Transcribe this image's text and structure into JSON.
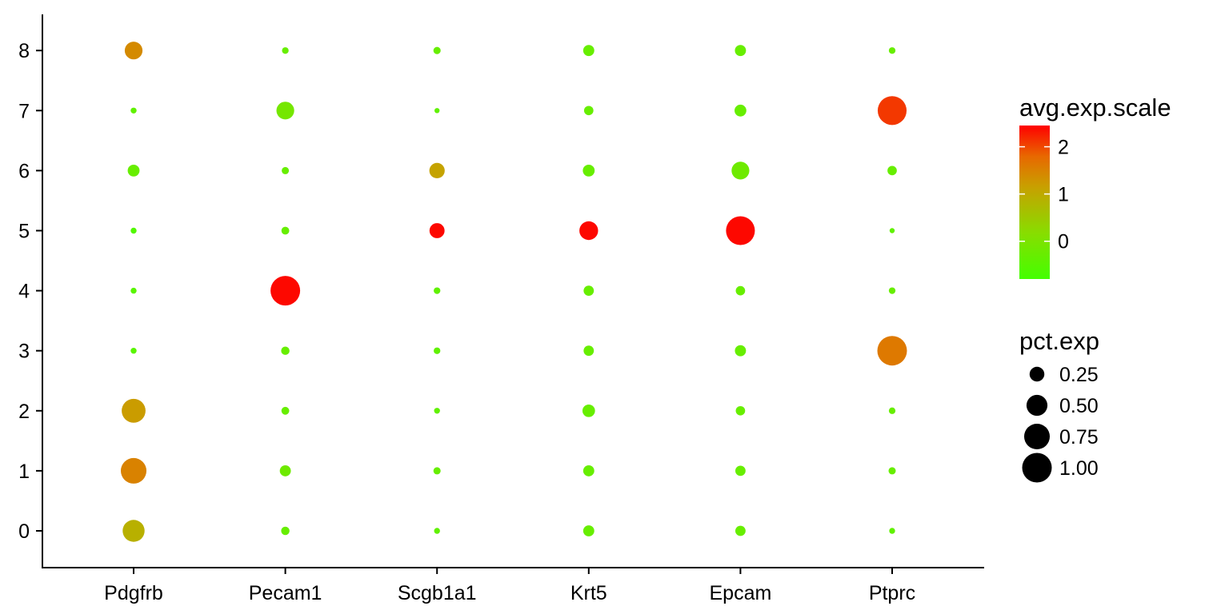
{
  "chart_data": {
    "type": "scatter",
    "subtype": "dot-plot",
    "title": "",
    "xlabel": "",
    "ylabel": "",
    "categories": [
      "Pdgfrb",
      "Pecam1",
      "Scgb1a1",
      "Krt5",
      "Epcam",
      "Ptprc"
    ],
    "clusters": [
      "0",
      "1",
      "2",
      "3",
      "4",
      "5",
      "6",
      "7",
      "8"
    ],
    "grid": false,
    "color_scale": {
      "title": "avg.exp.scale",
      "min": -0.8,
      "max": 2.45,
      "ticks": [
        0,
        1,
        2
      ],
      "low_color": "#44ff00",
      "mid_color": "#c8a000",
      "high_color": "#ff0000"
    },
    "size_scale": {
      "title": "pct.exp",
      "ticks": [
        0.25,
        0.5,
        0.75,
        1.0
      ],
      "tick_labels": [
        "0.25",
        "0.50",
        "0.75",
        "1.00"
      ]
    },
    "legend_position": "right",
    "points": [
      {
        "gene": "Pdgfrb",
        "cluster": "0",
        "pct_exp": 0.55,
        "avg_exp_scale": 0.9
      },
      {
        "gene": "Pdgfrb",
        "cluster": "1",
        "pct_exp": 0.75,
        "avg_exp_scale": 1.5
      },
      {
        "gene": "Pdgfrb",
        "cluster": "2",
        "pct_exp": 0.65,
        "avg_exp_scale": 1.2
      },
      {
        "gene": "Pdgfrb",
        "cluster": "3",
        "pct_exp": 0.04,
        "avg_exp_scale": -0.5
      },
      {
        "gene": "Pdgfrb",
        "cluster": "4",
        "pct_exp": 0.04,
        "avg_exp_scale": -0.5
      },
      {
        "gene": "Pdgfrb",
        "cluster": "5",
        "pct_exp": 0.04,
        "avg_exp_scale": -0.6
      },
      {
        "gene": "Pdgfrb",
        "cluster": "6",
        "pct_exp": 0.16,
        "avg_exp_scale": -0.3
      },
      {
        "gene": "Pdgfrb",
        "cluster": "7",
        "pct_exp": 0.04,
        "avg_exp_scale": -0.4
      },
      {
        "gene": "Pdgfrb",
        "cluster": "8",
        "pct_exp": 0.36,
        "avg_exp_scale": 1.4
      },
      {
        "gene": "Pecam1",
        "cluster": "0",
        "pct_exp": 0.08,
        "avg_exp_scale": -0.3
      },
      {
        "gene": "Pecam1",
        "cluster": "1",
        "pct_exp": 0.14,
        "avg_exp_scale": -0.2
      },
      {
        "gene": "Pecam1",
        "cluster": "2",
        "pct_exp": 0.07,
        "avg_exp_scale": -0.3
      },
      {
        "gene": "Pecam1",
        "cluster": "3",
        "pct_exp": 0.08,
        "avg_exp_scale": -0.3
      },
      {
        "gene": "Pecam1",
        "cluster": "4",
        "pct_exp": 1.0,
        "avg_exp_scale": 2.4
      },
      {
        "gene": "Pecam1",
        "cluster": "5",
        "pct_exp": 0.07,
        "avg_exp_scale": -0.3
      },
      {
        "gene": "Pecam1",
        "cluster": "6",
        "pct_exp": 0.06,
        "avg_exp_scale": -0.3
      },
      {
        "gene": "Pecam1",
        "cluster": "7",
        "pct_exp": 0.36,
        "avg_exp_scale": -0.1
      },
      {
        "gene": "Pecam1",
        "cluster": "8",
        "pct_exp": 0.05,
        "avg_exp_scale": -0.3
      },
      {
        "gene": "Scgb1a1",
        "cluster": "0",
        "pct_exp": 0.04,
        "avg_exp_scale": -0.4
      },
      {
        "gene": "Scgb1a1",
        "cluster": "1",
        "pct_exp": 0.06,
        "avg_exp_scale": -0.3
      },
      {
        "gene": "Scgb1a1",
        "cluster": "2",
        "pct_exp": 0.04,
        "avg_exp_scale": -0.4
      },
      {
        "gene": "Scgb1a1",
        "cluster": "3",
        "pct_exp": 0.05,
        "avg_exp_scale": -0.4
      },
      {
        "gene": "Scgb1a1",
        "cluster": "4",
        "pct_exp": 0.05,
        "avg_exp_scale": -0.4
      },
      {
        "gene": "Scgb1a1",
        "cluster": "5",
        "pct_exp": 0.26,
        "avg_exp_scale": 2.4
      },
      {
        "gene": "Scgb1a1",
        "cluster": "6",
        "pct_exp": 0.27,
        "avg_exp_scale": 1.1
      },
      {
        "gene": "Scgb1a1",
        "cluster": "7",
        "pct_exp": 0.03,
        "avg_exp_scale": -0.4
      },
      {
        "gene": "Scgb1a1",
        "cluster": "8",
        "pct_exp": 0.06,
        "avg_exp_scale": -0.3
      },
      {
        "gene": "Krt5",
        "cluster": "0",
        "pct_exp": 0.14,
        "avg_exp_scale": -0.3
      },
      {
        "gene": "Krt5",
        "cluster": "1",
        "pct_exp": 0.14,
        "avg_exp_scale": -0.3
      },
      {
        "gene": "Krt5",
        "cluster": "2",
        "pct_exp": 0.18,
        "avg_exp_scale": -0.3
      },
      {
        "gene": "Krt5",
        "cluster": "3",
        "pct_exp": 0.12,
        "avg_exp_scale": -0.3
      },
      {
        "gene": "Krt5",
        "cluster": "4",
        "pct_exp": 0.12,
        "avg_exp_scale": -0.3
      },
      {
        "gene": "Krt5",
        "cluster": "5",
        "pct_exp": 0.4,
        "avg_exp_scale": 2.4
      },
      {
        "gene": "Krt5",
        "cluster": "6",
        "pct_exp": 0.16,
        "avg_exp_scale": -0.3
      },
      {
        "gene": "Krt5",
        "cluster": "7",
        "pct_exp": 0.1,
        "avg_exp_scale": -0.3
      },
      {
        "gene": "Krt5",
        "cluster": "8",
        "pct_exp": 0.14,
        "avg_exp_scale": -0.3
      },
      {
        "gene": "Epcam",
        "cluster": "0",
        "pct_exp": 0.12,
        "avg_exp_scale": -0.3
      },
      {
        "gene": "Epcam",
        "cluster": "1",
        "pct_exp": 0.12,
        "avg_exp_scale": -0.3
      },
      {
        "gene": "Epcam",
        "cluster": "2",
        "pct_exp": 0.1,
        "avg_exp_scale": -0.3
      },
      {
        "gene": "Epcam",
        "cluster": "3",
        "pct_exp": 0.14,
        "avg_exp_scale": -0.3
      },
      {
        "gene": "Epcam",
        "cluster": "4",
        "pct_exp": 0.1,
        "avg_exp_scale": -0.3
      },
      {
        "gene": "Epcam",
        "cluster": "5",
        "pct_exp": 0.95,
        "avg_exp_scale": 2.4
      },
      {
        "gene": "Epcam",
        "cluster": "6",
        "pct_exp": 0.36,
        "avg_exp_scale": -0.2
      },
      {
        "gene": "Epcam",
        "cluster": "7",
        "pct_exp": 0.16,
        "avg_exp_scale": -0.3
      },
      {
        "gene": "Epcam",
        "cluster": "8",
        "pct_exp": 0.14,
        "avg_exp_scale": -0.3
      },
      {
        "gene": "Ptprc",
        "cluster": "0",
        "pct_exp": 0.04,
        "avg_exp_scale": -0.4
      },
      {
        "gene": "Ptprc",
        "cluster": "1",
        "pct_exp": 0.06,
        "avg_exp_scale": -0.3
      },
      {
        "gene": "Ptprc",
        "cluster": "2",
        "pct_exp": 0.05,
        "avg_exp_scale": -0.3
      },
      {
        "gene": "Ptprc",
        "cluster": "3",
        "pct_exp": 1.0,
        "avg_exp_scale": 1.6
      },
      {
        "gene": "Ptprc",
        "cluster": "4",
        "pct_exp": 0.05,
        "avg_exp_scale": -0.3
      },
      {
        "gene": "Ptprc",
        "cluster": "5",
        "pct_exp": 0.03,
        "avg_exp_scale": -0.4
      },
      {
        "gene": "Ptprc",
        "cluster": "6",
        "pct_exp": 0.1,
        "avg_exp_scale": -0.3
      },
      {
        "gene": "Ptprc",
        "cluster": "7",
        "pct_exp": 0.95,
        "avg_exp_scale": 2.1
      },
      {
        "gene": "Ptprc",
        "cluster": "8",
        "pct_exp": 0.05,
        "avg_exp_scale": -0.3
      }
    ]
  }
}
